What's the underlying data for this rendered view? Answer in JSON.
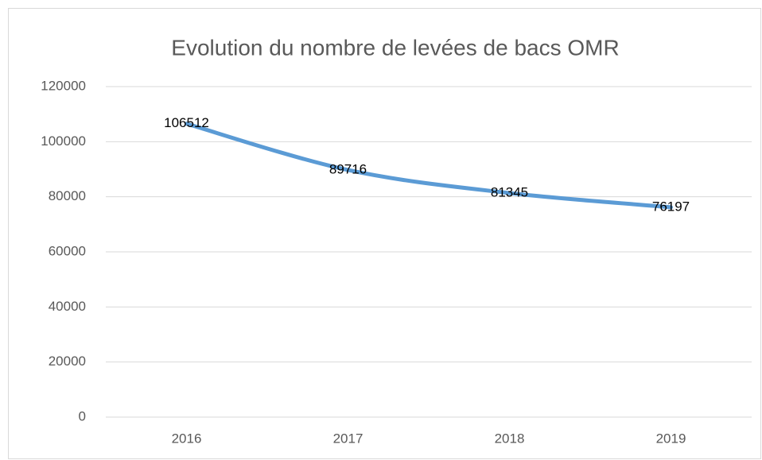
{
  "chart_data": {
    "type": "line",
    "title": "Evolution du nombre de levées de bacs OMR",
    "categories": [
      "2016",
      "2017",
      "2018",
      "2019"
    ],
    "values": [
      106512,
      89716,
      81345,
      76197
    ],
    "color": "#5b9bd5",
    "smooth": true,
    "data_labels": true,
    "ylim": [
      0,
      120000
    ],
    "yticks": [
      0,
      20000,
      40000,
      60000,
      80000,
      100000,
      120000
    ],
    "grid": true
  }
}
